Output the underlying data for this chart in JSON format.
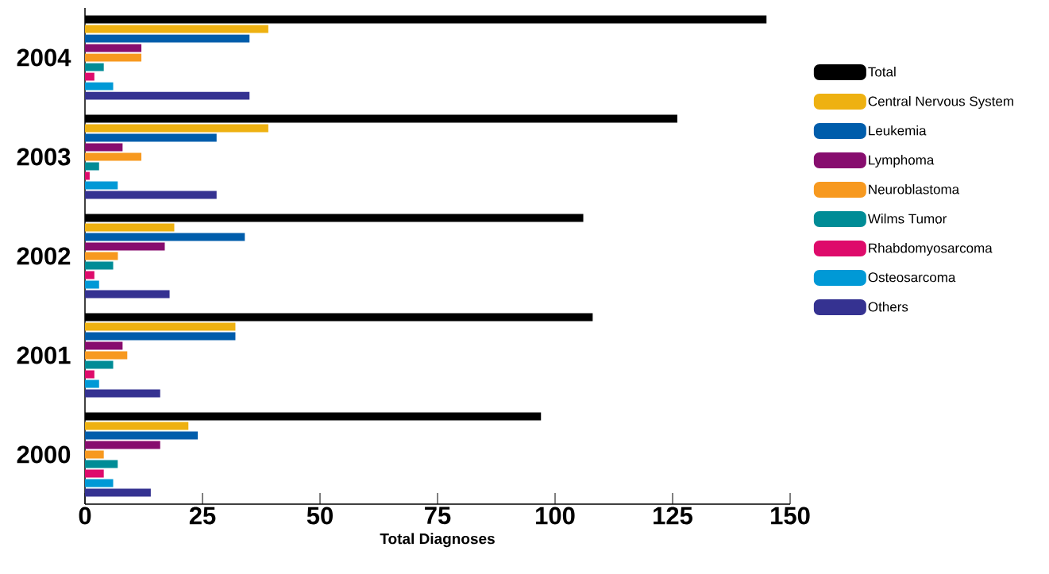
{
  "chart_data": {
    "type": "bar",
    "orientation": "horizontal",
    "xlabel": "Total Diagnoses",
    "categories": [
      "2004",
      "2003",
      "2002",
      "2001",
      "2000"
    ],
    "series": [
      {
        "name": "Total",
        "color": "#000000",
        "values": [
          145,
          126,
          106,
          108,
          97
        ]
      },
      {
        "name": "Central Nervous System",
        "color": "#eeb111",
        "values": [
          39,
          39,
          19,
          32,
          22
        ]
      },
      {
        "name": "Leukemia",
        "color": "#005dab",
        "values": [
          35,
          28,
          34,
          32,
          24
        ]
      },
      {
        "name": "Lymphoma",
        "color": "#870d6e",
        "values": [
          12,
          8,
          17,
          8,
          16
        ]
      },
      {
        "name": "Neuroblastoma",
        "color": "#f7991f",
        "values": [
          12,
          12,
          7,
          9,
          4
        ]
      },
      {
        "name": "Wilms Tumor",
        "color": "#008c96",
        "values": [
          4,
          3,
          6,
          6,
          7
        ]
      },
      {
        "name": "Rhabdomyosarcoma",
        "color": "#de0b6b",
        "values": [
          2,
          1,
          2,
          2,
          4
        ]
      },
      {
        "name": "Osteosarcoma",
        "color": "#0099d6",
        "values": [
          6,
          7,
          3,
          3,
          6
        ]
      },
      {
        "name": "Others",
        "color": "#353291",
        "values": [
          35,
          28,
          18,
          16,
          14
        ]
      }
    ],
    "xlim": [
      0,
      150
    ],
    "xticks": [
      0,
      25,
      50,
      75,
      100,
      125,
      150
    ],
    "grid": false,
    "legend": "right"
  }
}
